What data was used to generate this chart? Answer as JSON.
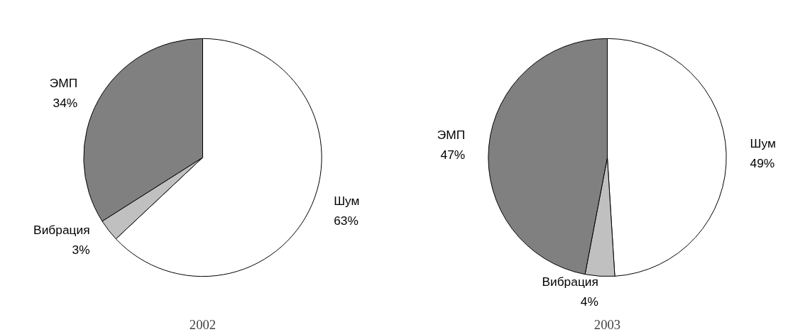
{
  "chart_data": [
    {
      "type": "pie",
      "title": "2002",
      "categories": [
        "Шум",
        "Вибрация",
        "ЭМП"
      ],
      "values": [
        63,
        3,
        34
      ],
      "value_labels": [
        "63%",
        "3%",
        "34%"
      ],
      "colors": [
        "#ffffff",
        "#c0c0c0",
        "#808080"
      ]
    },
    {
      "type": "pie",
      "title": "2003",
      "categories": [
        "Шум",
        "Вибрация",
        "ЭМП"
      ],
      "values": [
        49,
        4,
        47
      ],
      "value_labels": [
        "49%",
        "4%",
        "47%"
      ],
      "colors": [
        "#ffffff",
        "#c0c0c0",
        "#808080"
      ]
    }
  ]
}
